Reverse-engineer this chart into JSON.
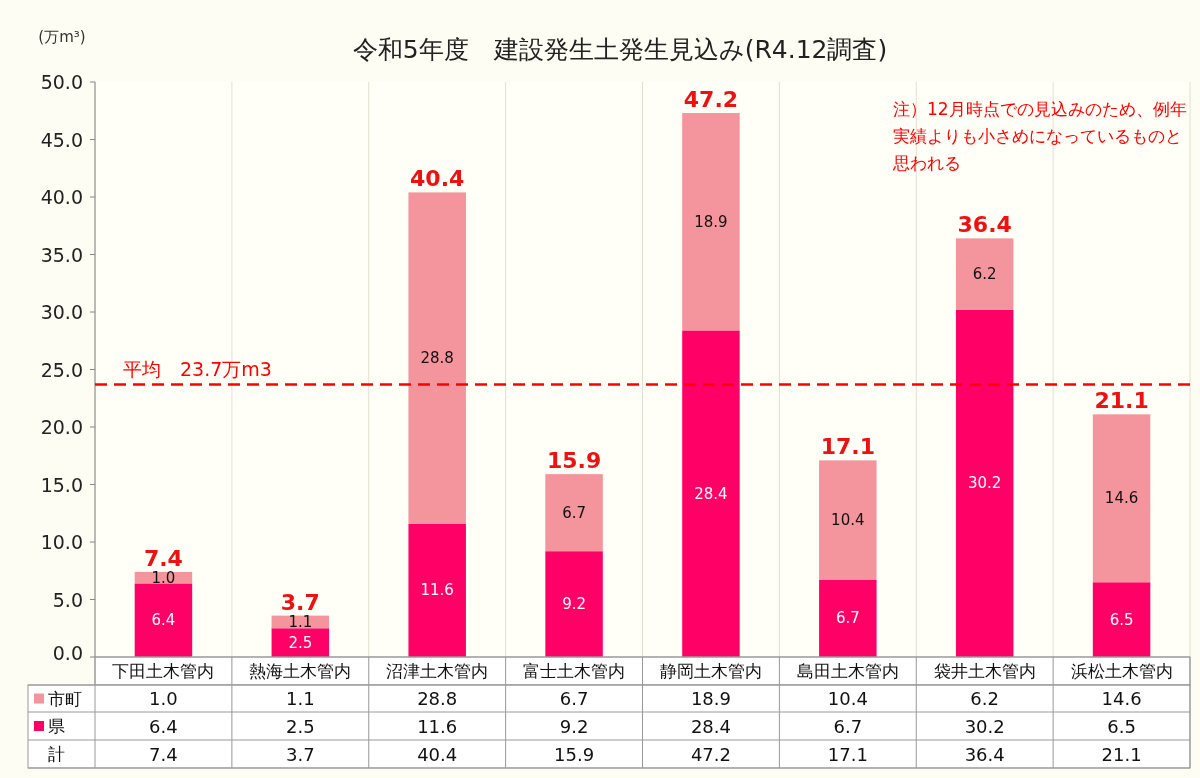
{
  "chart_data": {
    "type": "bar",
    "title": "令和5年度　建設発生土発生見込み(R4.12調査)",
    "ylabel": "(万m³)",
    "categories": [
      "下田土木管内",
      "熱海土木管内",
      "沼津土木管内",
      "富士土木管内",
      "静岡土木管内",
      "島田土木管内",
      "袋井土木管内",
      "浜松土木管内"
    ],
    "stacked": true,
    "series": [
      {
        "name": "県",
        "color": "#ff0066",
        "values": [
          6.4,
          2.5,
          11.6,
          9.2,
          28.4,
          6.7,
          30.2,
          6.5
        ],
        "value_labels": [
          "6.4",
          "2.5",
          "11.6",
          "9.2",
          "28.4",
          "6.7",
          "30.2",
          "6.5"
        ]
      },
      {
        "name": "市町",
        "color": "#f4949c",
        "values": [
          1.0,
          1.1,
          28.8,
          6.7,
          18.9,
          10.4,
          6.2,
          14.6
        ],
        "value_labels": [
          "1.0",
          "1.1",
          "28.8",
          "6.7",
          "18.9",
          "10.4",
          "6.2",
          "14.6"
        ]
      }
    ],
    "totals": [
      "7.4",
      "3.7",
      "40.4",
      "15.9",
      "47.2",
      "17.1",
      "36.4",
      "21.1"
    ],
    "ylim": [
      0,
      50
    ],
    "yticks": [
      {
        "value": 0,
        "label": "0.0"
      },
      {
        "value": 5,
        "label": "5.0"
      },
      {
        "value": 10,
        "label": "10.0"
      },
      {
        "value": 15,
        "label": "15.0"
      },
      {
        "value": 20,
        "label": "20.0"
      },
      {
        "value": 25,
        "label": "25.0"
      },
      {
        "value": 30,
        "label": "30.0"
      },
      {
        "value": 35,
        "label": "35.0"
      },
      {
        "value": 40,
        "label": "40.0"
      },
      {
        "value": 45,
        "label": "45.0"
      },
      {
        "value": 50,
        "label": "50.0"
      }
    ],
    "ref_lines": [
      {
        "axis": "y",
        "value": 23.7,
        "label": "平均　23.7万m3",
        "color": "#ff0000",
        "line_style": "dashed"
      }
    ],
    "annotations": [
      "注）12月時点での見込みのため、例年実績よりも小さめになっているものと思われる",
      "計"
    ],
    "grid": "x",
    "legend": "bottom"
  }
}
